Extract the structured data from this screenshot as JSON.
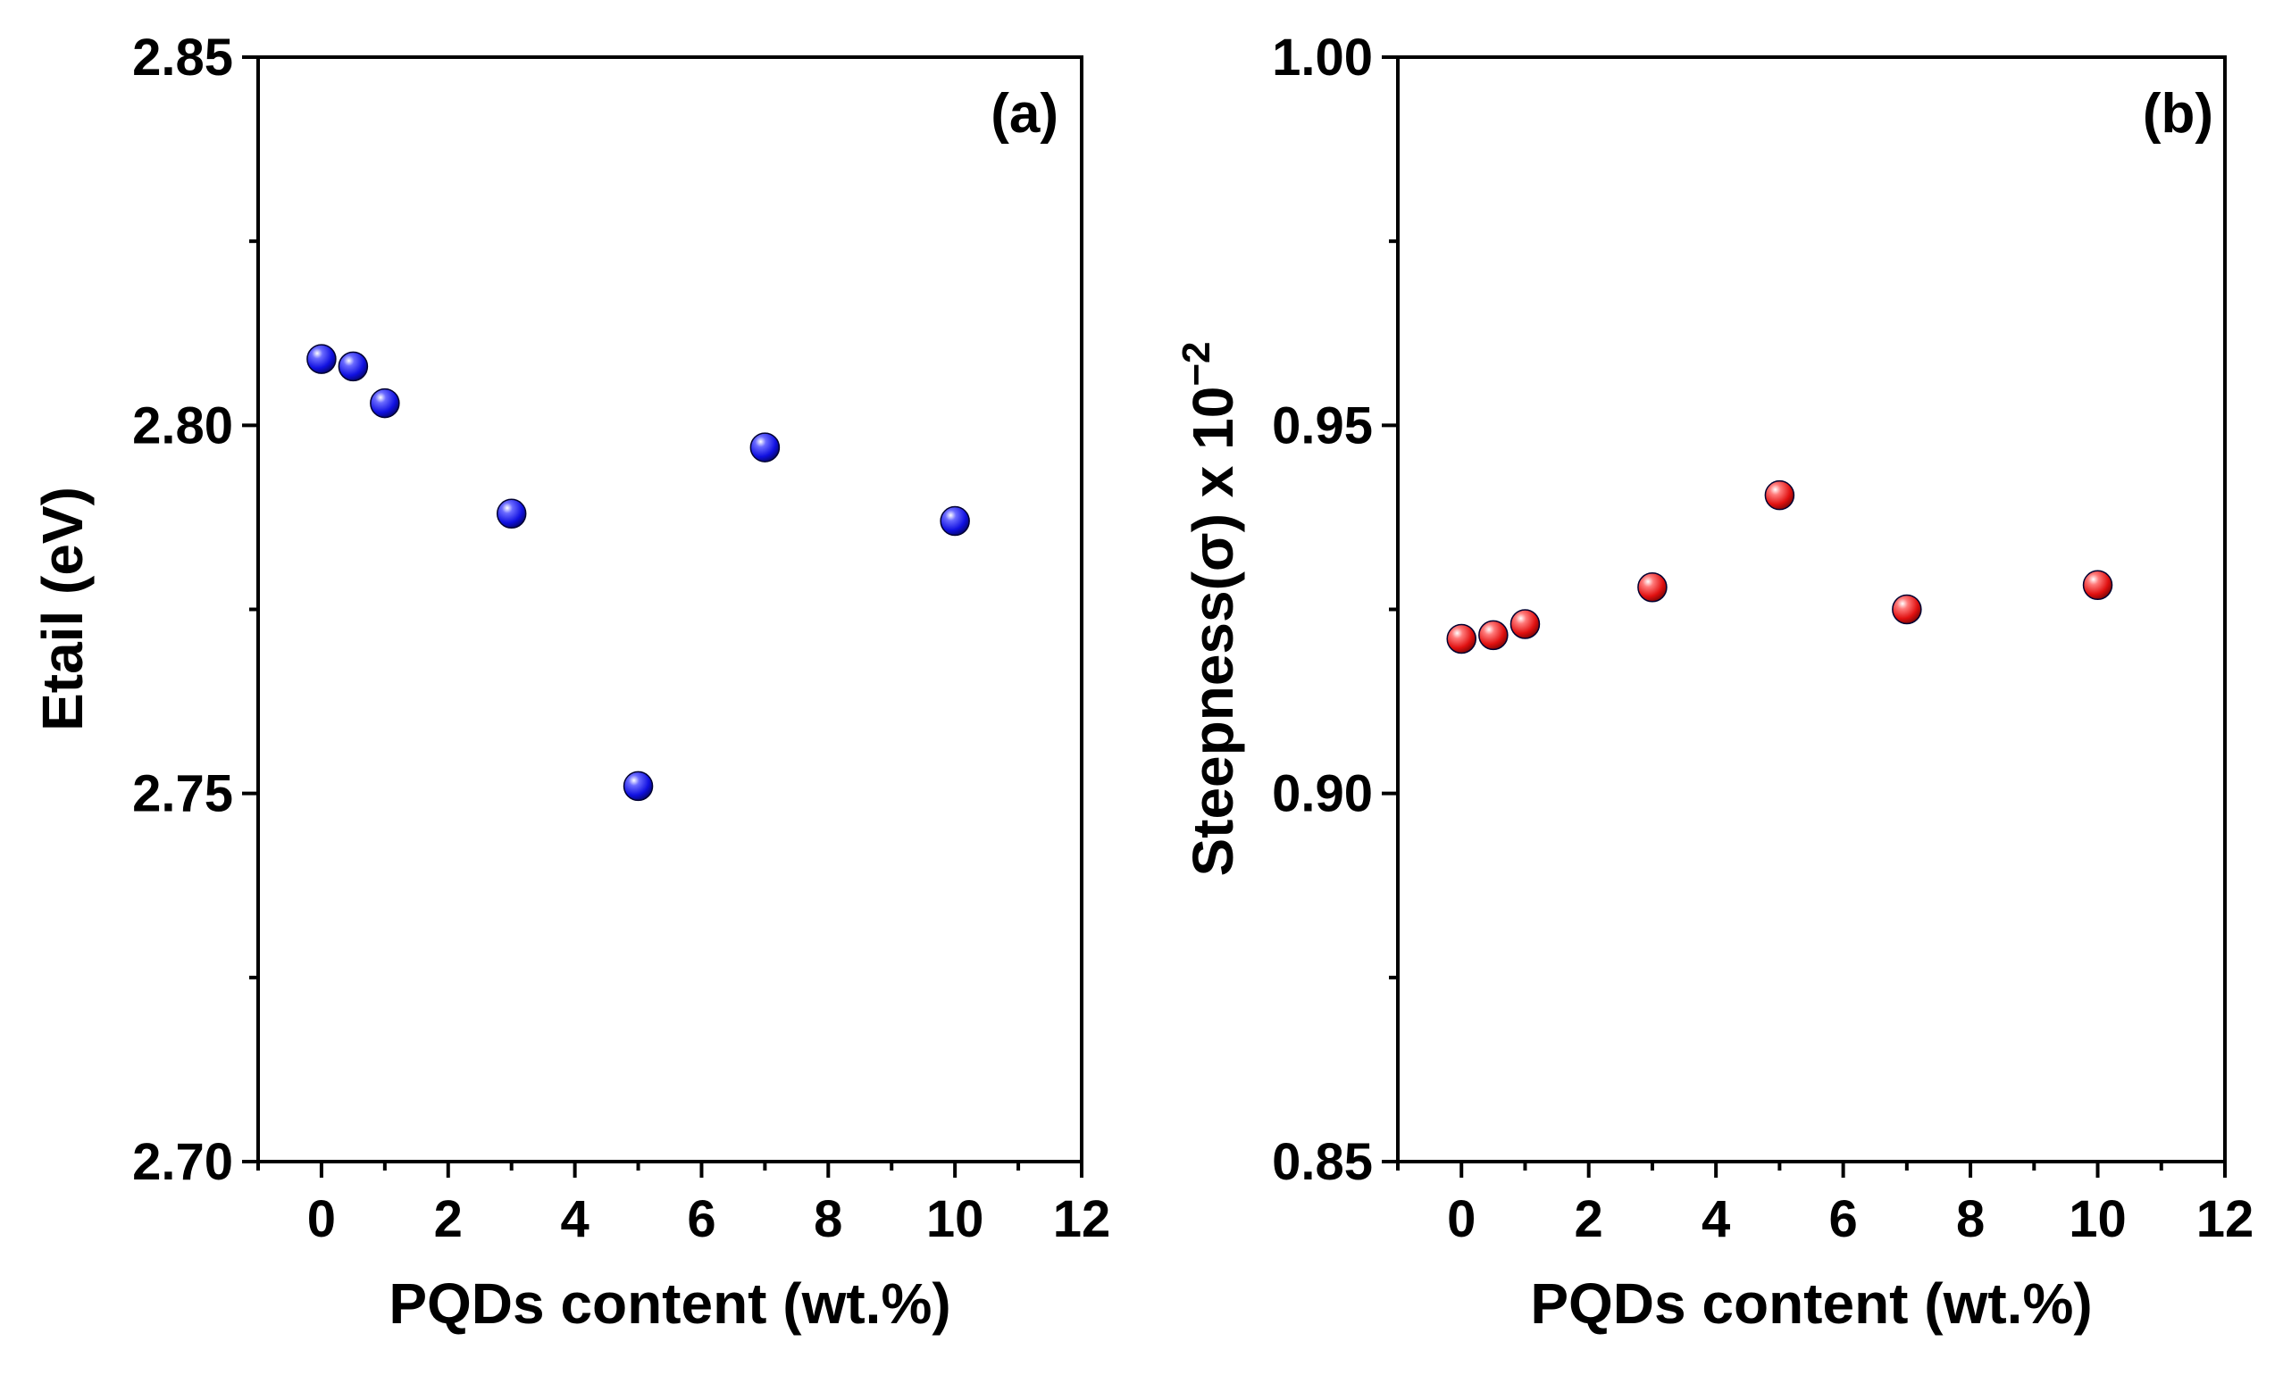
{
  "chart_data": [
    {
      "type": "scatter",
      "panel_label": "(a)",
      "xlabel": "PQDs content (wt.%)",
      "ylabel": "Etail (eV)",
      "xlim": [
        -1,
        12
      ],
      "ylim": [
        2.7,
        2.85
      ],
      "xticks": [
        0,
        2,
        4,
        6,
        8,
        10,
        12
      ],
      "xtick_labels": [
        "0",
        "2",
        "4",
        "6",
        "8",
        "10",
        "12"
      ],
      "yticks": [
        2.7,
        2.75,
        2.8,
        2.85
      ],
      "ytick_labels": [
        "2.70",
        "2.75",
        "2.80",
        "2.85"
      ],
      "series": [
        {
          "name": "Etail",
          "color": "#1010e0",
          "x": [
            0,
            0.5,
            1,
            3,
            5,
            7,
            10
          ],
          "y": [
            2.809,
            2.808,
            2.803,
            2.788,
            2.751,
            2.797,
            2.787
          ]
        }
      ]
    },
    {
      "type": "scatter",
      "panel_label": "(b)",
      "xlabel": "PQDs content (wt.%)",
      "ylabel": "Steepness(σ) x 10",
      "ylabel_exponent": "−2",
      "xlim": [
        -1,
        12
      ],
      "ylim": [
        0.85,
        1.0
      ],
      "xticks": [
        0,
        2,
        4,
        6,
        8,
        10,
        12
      ],
      "xtick_labels": [
        "0",
        "2",
        "4",
        "6",
        "8",
        "10",
        "12"
      ],
      "yticks": [
        0.85,
        0.9,
        0.95,
        1.0
      ],
      "ytick_labels": [
        "0.85",
        "0.90",
        "0.95",
        "1.00"
      ],
      "series": [
        {
          "name": "Steepness",
          "color": "#e01010",
          "x": [
            0,
            0.5,
            1,
            3,
            5,
            7,
            10
          ],
          "y": [
            0.921,
            0.9215,
            0.923,
            0.928,
            0.9405,
            0.925,
            0.9283
          ]
        }
      ]
    }
  ]
}
